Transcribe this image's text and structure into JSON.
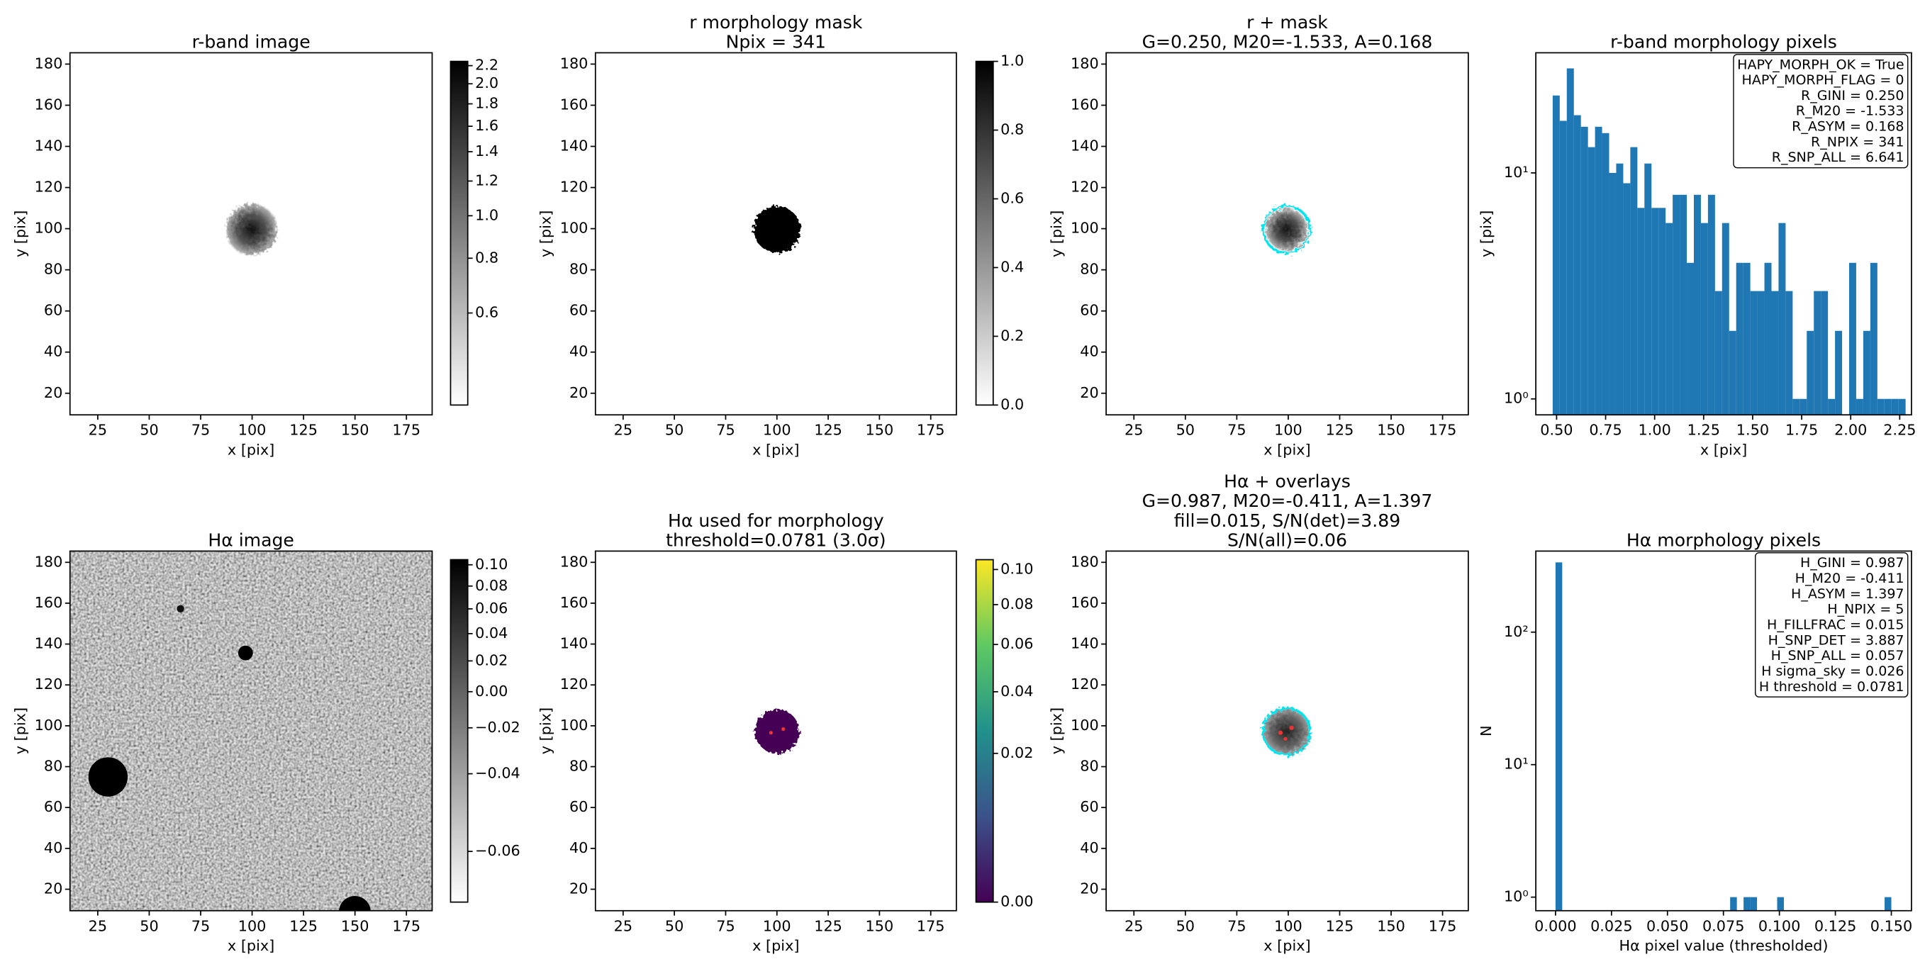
{
  "chart_data": [
    {
      "type": "image",
      "title": [
        "r-band image"
      ],
      "xlabel": "x [pix]",
      "ylabel": "y [pix]",
      "xlim": [
        11.5,
        187.5
      ],
      "ylim": [
        9.5,
        185.5
      ],
      "xticks": [
        25,
        50,
        75,
        100,
        125,
        150,
        175
      ],
      "yticks": [
        20,
        40,
        60,
        80,
        100,
        120,
        140,
        160,
        180
      ],
      "colorbar": {
        "cmap": "gray_r",
        "scale": "log",
        "lim": [
          0.37,
          2.25
        ],
        "ticks": [
          0.6,
          0.8,
          {
            "value": 1,
            "label": "1.0"
          },
          1.2,
          1.4,
          1.6,
          1.8,
          {
            "value": 2,
            "label": "2.0"
          },
          2.2
        ]
      }
    },
    {
      "type": "image",
      "title": [
        "r morphology mask",
        "Npix = 341"
      ],
      "xlabel": "x [pix]",
      "ylabel": "y [pix]",
      "xlim": [
        11.5,
        187.5
      ],
      "ylim": [
        9.5,
        185.5
      ],
      "xticks": [
        25,
        50,
        75,
        100,
        125,
        150,
        175
      ],
      "yticks": [
        20,
        40,
        60,
        80,
        100,
        120,
        140,
        160,
        180
      ],
      "colorbar": {
        "cmap": "gray_r",
        "scale": "linear",
        "lim": [
          0,
          1
        ],
        "ticks": [
          {
            "value": 0,
            "label": "0.0"
          },
          0.2,
          0.4,
          0.6,
          0.8,
          {
            "value": 1,
            "label": "1.0"
          }
        ]
      }
    },
    {
      "type": "image",
      "title": [
        "r + mask",
        "G=0.250, M20=-1.533, A=0.168"
      ],
      "xlabel": "x [pix]",
      "ylabel": "y [pix]",
      "xlim": [
        11.5,
        187.5
      ],
      "ylim": [
        9.5,
        185.5
      ],
      "xticks": [
        25,
        50,
        75,
        100,
        125,
        150,
        175
      ],
      "yticks": [
        20,
        40,
        60,
        80,
        100,
        120,
        140,
        160,
        180
      ]
    },
    {
      "type": "histogram",
      "title": [
        "r-band morphology pixels"
      ],
      "xlabel": "x [pix]",
      "ylabel": "y [pix]",
      "color": "#1f77b4",
      "yscale": "log",
      "bins": [
        0.48,
        0.516,
        0.552,
        0.588,
        0.624,
        0.66,
        0.696,
        0.732,
        0.768,
        0.804,
        0.84,
        0.876,
        0.912,
        0.948,
        0.984,
        1.02,
        1.056,
        1.092,
        1.128,
        1.164,
        1.2,
        1.236,
        1.272,
        1.308,
        1.344,
        1.38,
        1.416,
        1.452,
        1.488,
        1.524,
        1.56,
        1.596,
        1.632,
        1.668,
        1.704,
        1.74,
        1.776,
        1.812,
        1.848,
        1.884,
        1.92,
        1.956,
        1.992,
        2.028,
        2.064,
        2.1,
        2.136,
        2.172,
        2.208,
        2.244,
        2.28
      ],
      "values": [
        22,
        17,
        29,
        18,
        16,
        13,
        16,
        15,
        10,
        11,
        9,
        13,
        7,
        11,
        7,
        7,
        6,
        8,
        8,
        4,
        8,
        6,
        8,
        3,
        6,
        2,
        4,
        4,
        3,
        3,
        4,
        3,
        6,
        3,
        1,
        1,
        2,
        3,
        3,
        1,
        2,
        0,
        4,
        1,
        2,
        4,
        1,
        1,
        1,
        1
      ],
      "xlim": [
        0.394,
        2.31
      ],
      "ylim": [
        0.85,
        34
      ],
      "xticks": [
        {
          "value": 0.5,
          "label": "0.50"
        },
        0.75,
        {
          "value": 1,
          "label": "1.00"
        },
        1.25,
        {
          "value": 1.5,
          "label": "1.50"
        },
        1.75,
        {
          "value": 2,
          "label": "2.00"
        },
        2.25
      ],
      "yticks": [
        {
          "value": 1,
          "label": "10⁰"
        },
        {
          "value": 10,
          "label": "10¹"
        }
      ],
      "annotation": [
        "HAPY_MORPH_OK = True",
        "HAPY_MORPH_FLAG = 0",
        "R_GINI = 0.250",
        "R_M20 = -1.533",
        "R_ASYM = 0.168",
        "R_NPIX = 341",
        "R_SNP_ALL = 6.641"
      ]
    },
    {
      "type": "image",
      "title": [
        "Hα image"
      ],
      "xlabel": "x [pix]",
      "ylabel": "y [pix]",
      "xlim": [
        11.5,
        187.5
      ],
      "ylim": [
        9.5,
        185.5
      ],
      "xticks": [
        25,
        50,
        75,
        100,
        125,
        150,
        175
      ],
      "yticks": [
        20,
        40,
        60,
        80,
        100,
        120,
        140,
        160,
        180
      ],
      "colorbar": {
        "cmap": "gray_r",
        "scale": "sqrt",
        "lim": [
          -0.0637,
          0.105
        ],
        "ticks": [
          {
            "value": -0.06,
            "label": "−0.06"
          },
          {
            "value": -0.04,
            "label": "−0.04"
          },
          {
            "value": -0.02,
            "label": "−0.02"
          },
          {
            "value": 0,
            "label": "0.00"
          },
          0.02,
          0.04,
          0.06,
          0.08,
          {
            "value": 0.1,
            "label": "0.10"
          }
        ]
      }
    },
    {
      "type": "image",
      "title": [
        "Hα used for morphology",
        "threshold=0.0781 (3.0σ)"
      ],
      "xlabel": "x [pix]",
      "ylabel": "y [pix]",
      "xlim": [
        11.5,
        187.5
      ],
      "ylim": [
        9.5,
        185.5
      ],
      "xticks": [
        25,
        50,
        75,
        100,
        125,
        150,
        175
      ],
      "yticks": [
        20,
        40,
        60,
        80,
        100,
        120,
        140,
        160,
        180
      ],
      "colorbar": {
        "cmap": "viridis",
        "scale": "sqrt",
        "lim": [
          0,
          0.106
        ],
        "ticks": [
          {
            "value": 0,
            "label": "0.00"
          },
          0.02,
          0.04,
          0.06,
          0.08,
          {
            "value": 0.1,
            "label": "0.10"
          }
        ]
      }
    },
    {
      "type": "image",
      "title": [
        "Hα + overlays",
        "G=0.987, M20=-0.411, A=1.397",
        "fill=0.015, S/N(det)=3.89",
        "S/N(all)=0.06"
      ],
      "xlabel": "x [pix]",
      "ylabel": "y [pix]",
      "xlim": [
        11.5,
        187.5
      ],
      "ylim": [
        9.5,
        185.5
      ],
      "xticks": [
        25,
        50,
        75,
        100,
        125,
        150,
        175
      ],
      "yticks": [
        20,
        40,
        60,
        80,
        100,
        120,
        140,
        160,
        180
      ]
    },
    {
      "type": "histogram",
      "title": [
        "Hα morphology pixels"
      ],
      "xlabel": "Hα pixel value (thresholded)",
      "ylabel": "N",
      "color": "#1f77b4",
      "yscale": "log",
      "bins": [
        0,
        0.003,
        0.006,
        0.009,
        0.012,
        0.015,
        0.018,
        0.021,
        0.024,
        0.027,
        0.03,
        0.033,
        0.036,
        0.039,
        0.042,
        0.045,
        0.048,
        0.051,
        0.054,
        0.057,
        0.06,
        0.063,
        0.066,
        0.069,
        0.072,
        0.075,
        0.078,
        0.081,
        0.084,
        0.087,
        0.09,
        0.093,
        0.096,
        0.099,
        0.102,
        0.105,
        0.108,
        0.111,
        0.114,
        0.117,
        0.12,
        0.123,
        0.126,
        0.129,
        0.132,
        0.135,
        0.138,
        0.141,
        0.144,
        0.147,
        0.15
      ],
      "values": [
        336,
        0,
        0,
        0,
        0,
        0,
        0,
        0,
        0,
        0,
        0,
        0,
        0,
        0,
        0,
        0,
        0,
        0,
        0,
        0,
        0,
        0,
        0,
        0,
        0,
        0,
        1,
        0,
        1,
        1,
        0,
        0,
        0,
        1,
        0,
        0,
        0,
        0,
        0,
        0,
        0,
        0,
        0,
        0,
        0,
        0,
        0,
        0,
        0,
        1
      ],
      "xlim": [
        -0.0088,
        0.159
      ],
      "ylim": [
        0.79,
        409
      ],
      "xticks": [
        {
          "value": 0,
          "label": "0.000"
        },
        0.025,
        {
          "value": 0.05,
          "label": "0.050"
        },
        0.075,
        {
          "value": 0.1,
          "label": "0.100"
        },
        0.125,
        {
          "value": 0.15,
          "label": "0.150"
        }
      ],
      "yticks": [
        {
          "value": 1,
          "label": "10⁰"
        },
        {
          "value": 10,
          "label": "10¹"
        },
        {
          "value": 100,
          "label": "10²"
        }
      ],
      "annotation": [
        "H_GINI = 0.987",
        "H_M20 = -0.411",
        "H_ASYM = 1.397",
        "H_NPIX = 5",
        "H_FILLFRAC = 0.015",
        "H_SNP_DET = 3.887",
        "H_SNP_ALL = 0.057",
        "H sigma_sky = 0.026",
        "H threshold = 0.0781"
      ]
    }
  ]
}
